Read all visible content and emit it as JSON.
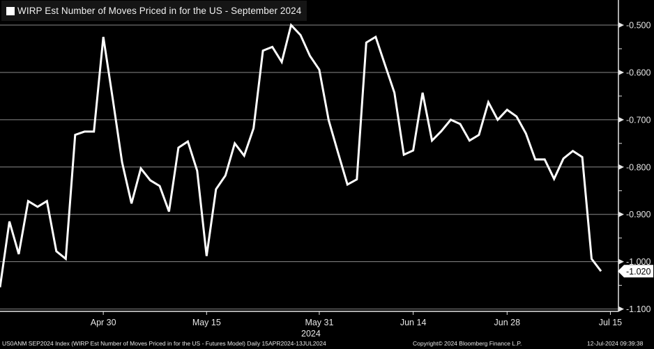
{
  "chart_data": {
    "type": "line",
    "title": "WIRP Est Number of Moves Priced in for the US - September 2024",
    "legend": {
      "entries": [
        "WIRP Est Number of Moves Priced in for the US - September 2024"
      ],
      "placement": "top-left"
    },
    "x": [
      "2024-04-15",
      "2024-04-16",
      "2024-04-17",
      "2024-04-18",
      "2024-04-19",
      "2024-04-22",
      "2024-04-23",
      "2024-04-24",
      "2024-04-25",
      "2024-04-26",
      "2024-04-29",
      "2024-04-30",
      "2024-05-01",
      "2024-05-02",
      "2024-05-03",
      "2024-05-06",
      "2024-05-07",
      "2024-05-08",
      "2024-05-09",
      "2024-05-10",
      "2024-05-13",
      "2024-05-14",
      "2024-05-15",
      "2024-05-16",
      "2024-05-17",
      "2024-05-20",
      "2024-05-21",
      "2024-05-22",
      "2024-05-23",
      "2024-05-24",
      "2024-05-27",
      "2024-05-28",
      "2024-05-29",
      "2024-05-30",
      "2024-05-31",
      "2024-06-03",
      "2024-06-04",
      "2024-06-05",
      "2024-06-06",
      "2024-06-07",
      "2024-06-10",
      "2024-06-11",
      "2024-06-12",
      "2024-06-13",
      "2024-06-14",
      "2024-06-17",
      "2024-06-18",
      "2024-06-19",
      "2024-06-20",
      "2024-06-21",
      "2024-06-24",
      "2024-06-25",
      "2024-06-26",
      "2024-06-27",
      "2024-06-28",
      "2024-07-01",
      "2024-07-02",
      "2024-07-03",
      "2024-07-04",
      "2024-07-05",
      "2024-07-08",
      "2024-07-09",
      "2024-07-10",
      "2024-07-11",
      "2024-07-12"
    ],
    "values": [
      -1.054,
      -0.915,
      -0.984,
      -0.872,
      -0.884,
      -0.872,
      -0.978,
      -0.994,
      -0.732,
      -0.725,
      -0.725,
      -0.525,
      -0.655,
      -0.79,
      -0.877,
      -0.803,
      -0.828,
      -0.84,
      -0.894,
      -0.759,
      -0.746,
      -0.808,
      -0.988,
      -0.847,
      -0.818,
      -0.75,
      -0.776,
      -0.718,
      -0.554,
      -0.546,
      -0.578,
      -0.5,
      -0.521,
      -0.565,
      -0.594,
      -0.701,
      -0.77,
      -0.837,
      -0.826,
      -0.537,
      -0.525,
      -0.584,
      -0.643,
      -0.774,
      -0.765,
      -0.643,
      -0.744,
      -0.724,
      -0.7,
      -0.709,
      -0.744,
      -0.732,
      -0.663,
      -0.7,
      -0.679,
      -0.693,
      -0.729,
      -0.784,
      -0.784,
      -0.825,
      -0.782,
      -0.766,
      -0.779,
      -0.994,
      -1.02
    ],
    "last_value_label": "-1.020",
    "ylim": [
      -1.105,
      -0.447
    ],
    "y_axis_side": "right",
    "y_ticks": [
      -0.5,
      -0.6,
      -0.7,
      -0.8,
      -0.9,
      -1.0,
      -1.1
    ],
    "y_tick_labels": [
      "-0.500",
      "-0.600",
      "-0.700",
      "-0.800",
      "-0.900",
      "-1.000",
      "-1.100"
    ],
    "x_ticks": [
      {
        "label": "Apr 30",
        "date": "2024-04-30"
      },
      {
        "label": "May 15",
        "date": "2024-05-15"
      },
      {
        "label": "May 31",
        "date": "2024-05-31"
      },
      {
        "label": "Jun 14",
        "date": "2024-06-14"
      },
      {
        "label": "Jun 28",
        "date": "2024-06-28"
      },
      {
        "label": "Jul 15",
        "date": "2024-07-15"
      }
    ],
    "x_year_label": "2024",
    "grid": true,
    "colors": {
      "background": "#000000",
      "line": "#ffffff",
      "grid": "#8a8a8a",
      "legend_bg": "#151515"
    }
  },
  "footer": {
    "source": "US0ANM SEP2024 Index (WIRP Est Number of Moves Priced in for the US - Futures Model)  Daily 15APR2024-13JUL2024",
    "copyright": "Copyright© 2024 Bloomberg Finance L.P.",
    "timestamp": "12-Jul-2024 09:39:38"
  }
}
